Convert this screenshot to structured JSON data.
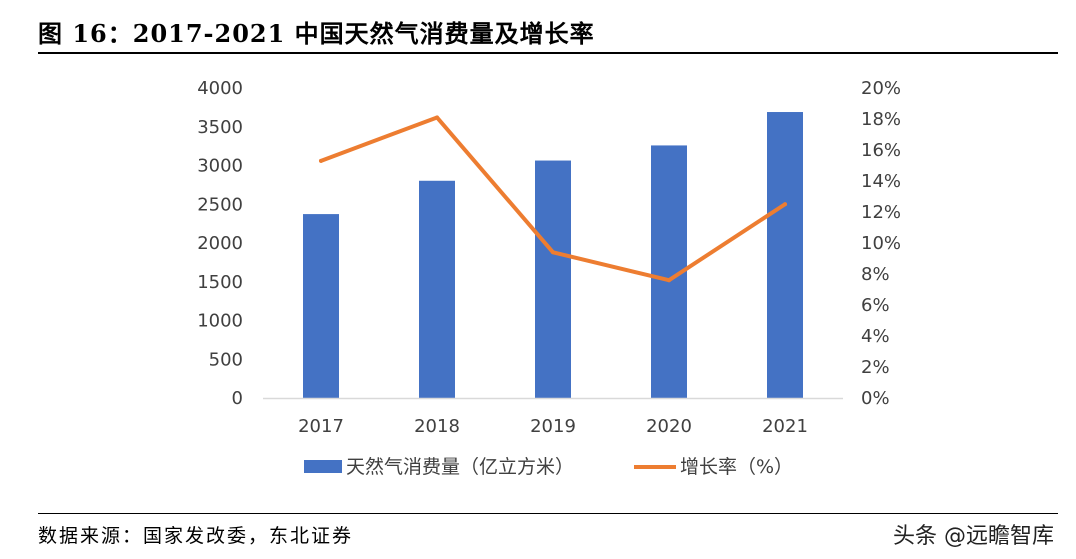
{
  "header": {
    "title": "图 16：2017-2021 中国天然气消费量及增长率"
  },
  "footer": {
    "source": "数据来源：国家发改委，东北证券",
    "watermark": "头条 @远瞻智库"
  },
  "colors": {
    "bar": "#4472C4",
    "line": "#ED7D31",
    "axis": "#D9D9D9",
    "text": "#404040"
  },
  "chart_data": {
    "type": "bar",
    "categories": [
      "2017",
      "2018",
      "2019",
      "2020",
      "2021"
    ],
    "series": [
      {
        "name": "天然气消费量（亿立方米）",
        "type": "bar",
        "axis": "left",
        "values": [
          2373,
          2803,
          3064,
          3259,
          3690
        ]
      },
      {
        "name": "增长率（%）",
        "type": "line",
        "axis": "right",
        "values": [
          15.3,
          18.1,
          9.4,
          7.6,
          12.5
        ]
      }
    ],
    "left_axis": {
      "ylim": [
        0,
        4000
      ],
      "ticks": [
        "0",
        "500",
        "1000",
        "1500",
        "2000",
        "2500",
        "3000",
        "3500",
        "4000"
      ]
    },
    "right_axis": {
      "ylim": [
        0,
        20
      ],
      "ticks": [
        "0%",
        "2%",
        "4%",
        "6%",
        "8%",
        "10%",
        "12%",
        "14%",
        "16%",
        "18%",
        "20%"
      ]
    },
    "grid": false,
    "legend_position": "bottom"
  }
}
